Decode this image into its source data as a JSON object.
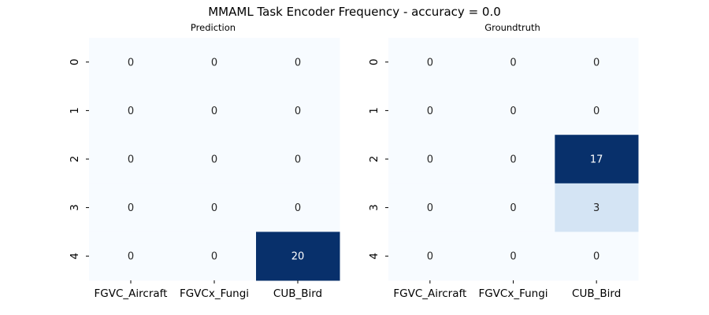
{
  "figure": {
    "suptitle": "MMAML Task Encoder Frequency - accuracy = 0.0"
  },
  "colors": {
    "low": "#f7fbff",
    "high": "#08306b",
    "text_light": "#ffffff",
    "text_dark": "#262626",
    "tick": "#000000"
  },
  "chart_data": [
    {
      "type": "heatmap",
      "title": "Prediction",
      "x_categories": [
        "FGVC_Aircraft",
        "FGVCx_Fungi",
        "CUB_Bird"
      ],
      "y_categories": [
        "0",
        "1",
        "2",
        "3",
        "4"
      ],
      "values": [
        [
          0,
          0,
          0
        ],
        [
          0,
          0,
          0
        ],
        [
          0,
          0,
          0
        ],
        [
          0,
          0,
          0
        ],
        [
          0,
          0,
          20
        ]
      ],
      "colormap": "Blues",
      "colorbar": false,
      "annotated": true
    },
    {
      "type": "heatmap",
      "title": "Groundtruth",
      "x_categories": [
        "FGVC_Aircraft",
        "FGVCx_Fungi",
        "CUB_Bird"
      ],
      "y_categories": [
        "0",
        "1",
        "2",
        "3",
        "4"
      ],
      "values": [
        [
          0,
          0,
          0
        ],
        [
          0,
          0,
          0
        ],
        [
          0,
          0,
          17
        ],
        [
          0,
          0,
          3
        ],
        [
          0,
          0,
          0
        ]
      ],
      "colormap": "Blues",
      "colorbar": false,
      "annotated": true
    }
  ]
}
